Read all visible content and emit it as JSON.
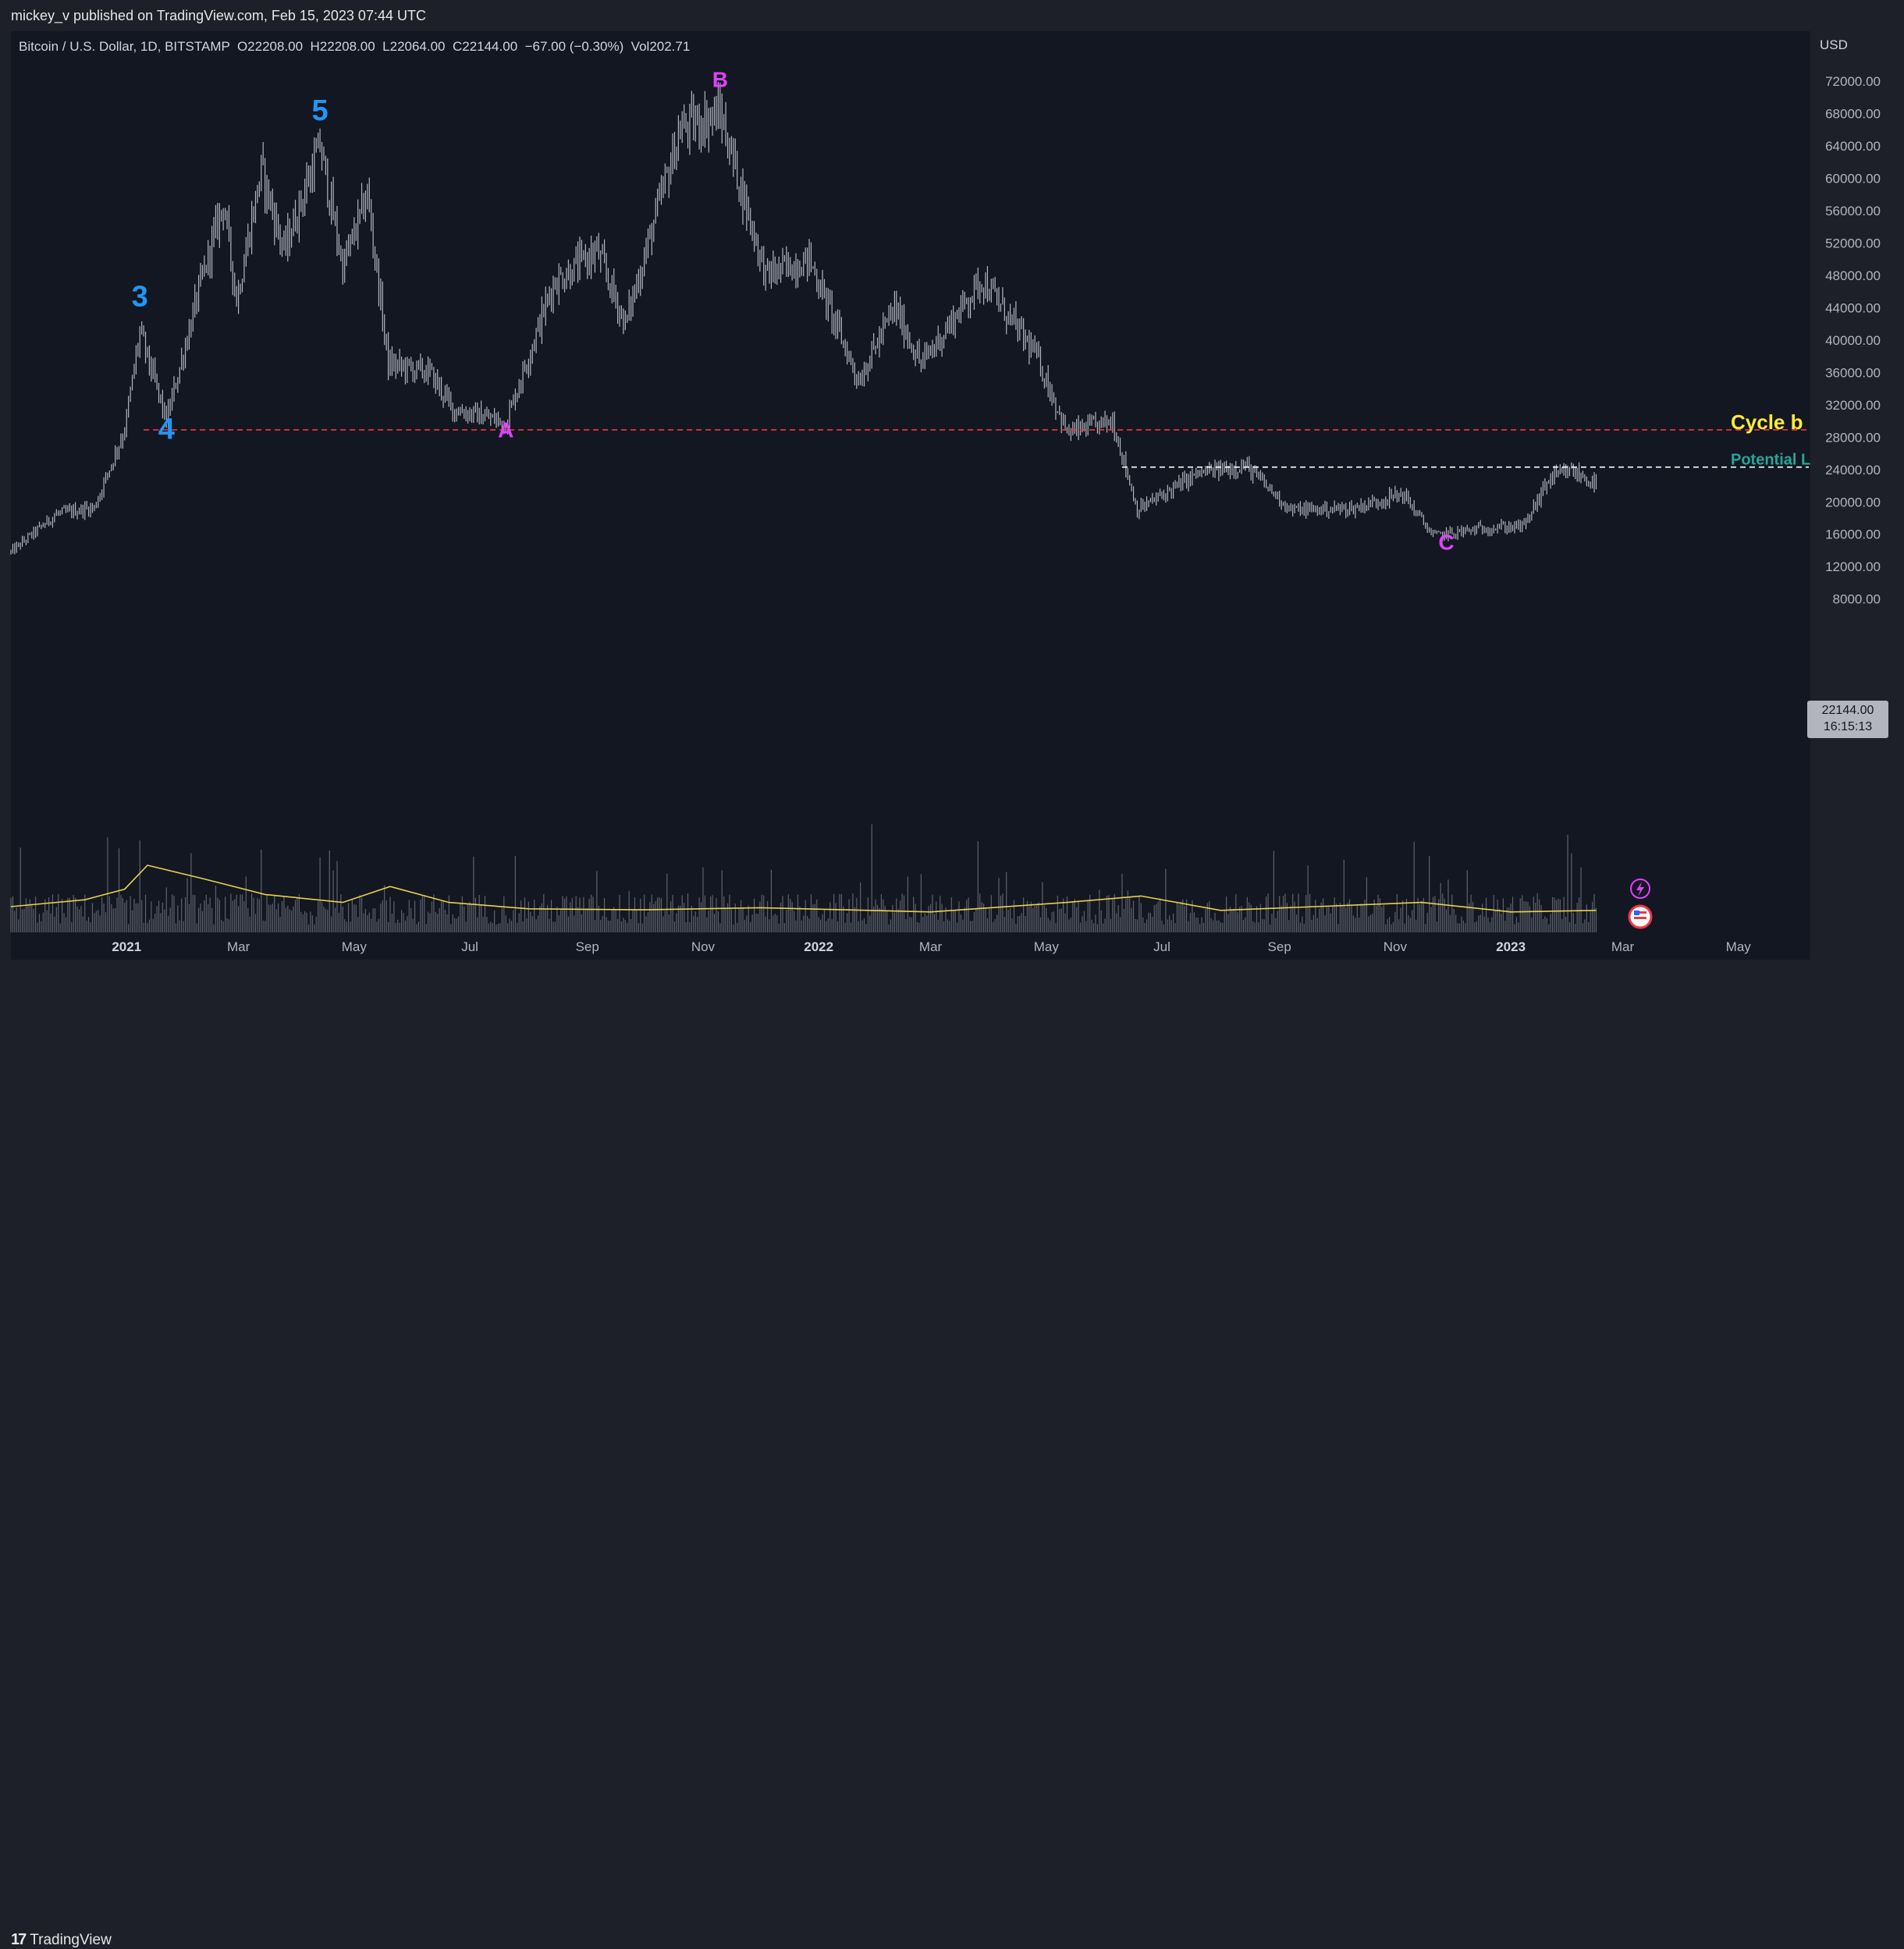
{
  "header": {
    "publisher": "mickey_v published on TradingView.com, Feb 15, 2023 07:44 UTC",
    "symbol_line": "Bitcoin / U.S. Dollar, 1D, BITSTAMP  O22208.00  H22208.00  L22064.00  C22144.00  −67.00 (−0.30%)  Vol202.71",
    "currency": "USD"
  },
  "footer": {
    "brand": "TradingView",
    "logo_mark": "17"
  },
  "price_tag": {
    "price": "22144.00",
    "countdown": "16:15:13"
  },
  "colors": {
    "background": "#131722",
    "candles": "#b2b5be",
    "volume": "#787b86",
    "volume_ma": "#e8d14a",
    "cycle_line": "#f23645",
    "potential_line": "#ffffff",
    "wave_blue": "#2196f3",
    "wave_magenta": "#e040fb",
    "cycle_label": "#ffeb3b",
    "potential_label": "#26a69a"
  },
  "chart_data": {
    "type": "candlestick",
    "title": "Bitcoin / U.S. Dollar, 1D, BITSTAMP",
    "ylabel": "USD",
    "ylim": [
      6500,
      74500
    ],
    "yticks": [
      "72000.00",
      "68000.00",
      "64000.00",
      "60000.00",
      "56000.00",
      "52000.00",
      "48000.00",
      "44000.00",
      "40000.00",
      "36000.00",
      "32000.00",
      "28000.00",
      "24000.00",
      "20000.00",
      "16000.00",
      "12000.00",
      "8000.00"
    ],
    "xticks": [
      {
        "label": "2021",
        "bold": true
      },
      {
        "label": "Mar",
        "bold": false
      },
      {
        "label": "May",
        "bold": false
      },
      {
        "label": "Jul",
        "bold": false
      },
      {
        "label": "Sep",
        "bold": false
      },
      {
        "label": "Nov",
        "bold": false
      },
      {
        "label": "2022",
        "bold": true
      },
      {
        "label": "Mar",
        "bold": false
      },
      {
        "label": "May",
        "bold": false
      },
      {
        "label": "Jul",
        "bold": false
      },
      {
        "label": "Sep",
        "bold": false
      },
      {
        "label": "Nov",
        "bold": false
      },
      {
        "label": "2023",
        "bold": true
      },
      {
        "label": "Mar",
        "bold": false
      },
      {
        "label": "May",
        "bold": false
      }
    ],
    "x_start": "2020-11-01",
    "x_ticks_dates": [
      "2021-01-01",
      "2021-03-01",
      "2021-05-01",
      "2021-07-01",
      "2021-09-01",
      "2021-11-01",
      "2022-01-01",
      "2022-03-01",
      "2022-05-01",
      "2022-07-01",
      "2022-09-01",
      "2022-11-01",
      "2023-01-01",
      "2023-03-01",
      "2023-05-01"
    ],
    "price_path": [
      {
        "date": "2020-11-01",
        "close": 13800
      },
      {
        "date": "2020-11-25",
        "close": 18500
      },
      {
        "date": "2020-12-15",
        "close": 19300
      },
      {
        "date": "2020-12-31",
        "close": 29000
      },
      {
        "date": "2021-01-08",
        "close": 41000
      },
      {
        "date": "2021-01-22",
        "close": 30000
      },
      {
        "date": "2021-02-08",
        "close": 46000
      },
      {
        "date": "2021-02-21",
        "close": 57000
      },
      {
        "date": "2021-02-28",
        "close": 45000
      },
      {
        "date": "2021-03-13",
        "close": 61000
      },
      {
        "date": "2021-03-25",
        "close": 51000
      },
      {
        "date": "2021-04-13",
        "close": 64000
      },
      {
        "date": "2021-04-25",
        "close": 49000
      },
      {
        "date": "2021-05-08",
        "close": 58000
      },
      {
        "date": "2021-05-19",
        "close": 37000
      },
      {
        "date": "2021-06-10",
        "close": 36000
      },
      {
        "date": "2021-06-22",
        "close": 31500
      },
      {
        "date": "2021-07-20",
        "close": 29800
      },
      {
        "date": "2021-08-14",
        "close": 47000
      },
      {
        "date": "2021-09-06",
        "close": 51000
      },
      {
        "date": "2021-09-21",
        "close": 42000
      },
      {
        "date": "2021-10-20",
        "close": 66000
      },
      {
        "date": "2021-11-10",
        "close": 68000
      },
      {
        "date": "2021-12-04",
        "close": 48000
      },
      {
        "date": "2021-12-27",
        "close": 50000
      },
      {
        "date": "2022-01-22",
        "close": 35000
      },
      {
        "date": "2022-02-10",
        "close": 44000
      },
      {
        "date": "2022-02-24",
        "close": 37000
      },
      {
        "date": "2022-03-28",
        "close": 47500
      },
      {
        "date": "2022-04-26",
        "close": 38000
      },
      {
        "date": "2022-05-12",
        "close": 28500
      },
      {
        "date": "2022-06-05",
        "close": 30000
      },
      {
        "date": "2022-06-18",
        "close": 19000
      },
      {
        "date": "2022-07-20",
        "close": 23500
      },
      {
        "date": "2022-08-14",
        "close": 24500
      },
      {
        "date": "2022-09-07",
        "close": 19000
      },
      {
        "date": "2022-10-10",
        "close": 19200
      },
      {
        "date": "2022-11-05",
        "close": 21000
      },
      {
        "date": "2022-11-21",
        "close": 15800
      },
      {
        "date": "2022-12-20",
        "close": 16800
      },
      {
        "date": "2023-01-08",
        "close": 17000
      },
      {
        "date": "2023-01-21",
        "close": 22800
      },
      {
        "date": "2023-02-02",
        "close": 23800
      },
      {
        "date": "2023-02-15",
        "close": 22144
      }
    ],
    "levels": [
      {
        "name": "Cycle b",
        "price": 28900,
        "start": "2021-01-10",
        "style": "dashed-red"
      },
      {
        "name": "Potential L",
        "price": 24300,
        "start": "2022-06-10",
        "style": "dashed-white"
      }
    ],
    "annotations": [
      {
        "text": "3",
        "date": "2021-01-08",
        "price": 44200,
        "color": "blue"
      },
      {
        "text": "4",
        "date": "2021-01-22",
        "price": 27800,
        "color": "blue"
      },
      {
        "text": "5",
        "date": "2021-04-13",
        "price": 67200,
        "color": "blue"
      },
      {
        "text": "A",
        "date": "2021-07-20",
        "price": 28000,
        "color": "magenta"
      },
      {
        "text": "B",
        "date": "2021-11-10",
        "price": 71300,
        "color": "magenta"
      },
      {
        "text": "C",
        "date": "2022-11-28",
        "price": 14100,
        "color": "magenta"
      }
    ],
    "volume_ma_path": [
      {
        "date": "2020-11-01",
        "v": 0.22
      },
      {
        "date": "2020-12-10",
        "v": 0.35
      },
      {
        "date": "2020-12-31",
        "v": 0.55
      },
      {
        "date": "2021-01-12",
        "v": 1.0
      },
      {
        "date": "2021-02-10",
        "v": 0.75
      },
      {
        "date": "2021-03-15",
        "v": 0.45
      },
      {
        "date": "2021-04-25",
        "v": 0.3
      },
      {
        "date": "2021-05-20",
        "v": 0.6
      },
      {
        "date": "2021-06-20",
        "v": 0.3
      },
      {
        "date": "2021-08-01",
        "v": 0.18
      },
      {
        "date": "2021-10-01",
        "v": 0.16
      },
      {
        "date": "2021-12-01",
        "v": 0.2
      },
      {
        "date": "2022-03-01",
        "v": 0.12
      },
      {
        "date": "2022-05-12",
        "v": 0.3
      },
      {
        "date": "2022-06-20",
        "v": 0.42
      },
      {
        "date": "2022-08-01",
        "v": 0.15
      },
      {
        "date": "2022-11-15",
        "v": 0.3
      },
      {
        "date": "2023-01-01",
        "v": 0.12
      },
      {
        "date": "2023-02-15",
        "v": 0.15
      }
    ]
  }
}
